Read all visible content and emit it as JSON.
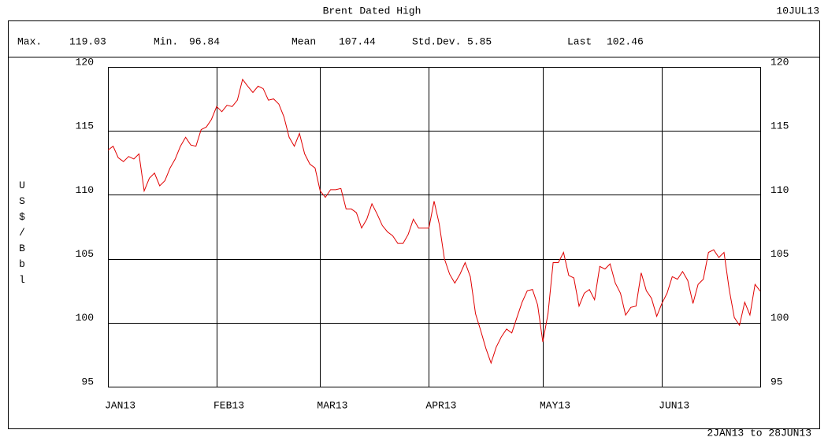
{
  "header": {
    "title": "Brent Dated High",
    "date": "10JUL13"
  },
  "stats": [
    {
      "label": "Max.",
      "value": 119.03
    },
    {
      "label": "Min.",
      "value": 96.84
    },
    {
      "label": "Mean",
      "value": 107.44
    },
    {
      "label": "Std.Dev.",
      "value": 5.85
    },
    {
      "label": "Last",
      "value": 102.46
    }
  ],
  "footer": "2JAN13 to 28JUN13",
  "chart_data": {
    "type": "line",
    "ylabel": "US$/Bbl",
    "color": "#e00000",
    "grid": true,
    "xlim": [
      0,
      126
    ],
    "xticks": [
      {
        "value": 0,
        "label": "JAN13"
      },
      {
        "value": 21,
        "label": "FEB13"
      },
      {
        "value": 41,
        "label": "MAR13"
      },
      {
        "value": 62,
        "label": "APR13"
      },
      {
        "value": 84,
        "label": "MAY13"
      },
      {
        "value": 107,
        "label": "JUN13"
      }
    ],
    "ylim": [
      95,
      120
    ],
    "yticks": [
      95,
      100,
      105,
      110,
      115,
      120
    ],
    "values": [
      113.5,
      113.8,
      112.9,
      112.6,
      113.0,
      112.8,
      113.2,
      110.3,
      111.3,
      111.7,
      110.7,
      111.1,
      112.1,
      112.8,
      113.8,
      114.5,
      113.9,
      113.8,
      115.1,
      115.3,
      115.9,
      116.9,
      116.5,
      117.0,
      116.9,
      117.4,
      119.03,
      118.5,
      118.0,
      118.5,
      118.3,
      117.4,
      117.5,
      117.1,
      116.1,
      114.5,
      113.8,
      114.8,
      113.2,
      112.4,
      112.1,
      110.3,
      109.8,
      110.4,
      110.4,
      110.5,
      108.9,
      108.9,
      108.6,
      107.4,
      108.1,
      109.3,
      108.5,
      107.6,
      107.1,
      106.8,
      106.2,
      106.2,
      106.9,
      108.1,
      107.4,
      107.4,
      107.4,
      109.5,
      107.7,
      105.0,
      103.8,
      103.1,
      103.8,
      104.7,
      103.6,
      100.7,
      99.4,
      98.0,
      96.84,
      98.1,
      98.9,
      99.5,
      99.2,
      100.4,
      101.6,
      102.5,
      102.6,
      101.4,
      98.5,
      100.7,
      104.7,
      104.7,
      105.5,
      103.7,
      103.5,
      101.3,
      102.3,
      102.6,
      101.8,
      104.4,
      104.2,
      104.6,
      103.1,
      102.3,
      100.6,
      101.2,
      101.3,
      103.9,
      102.5,
      101.9,
      100.5,
      101.5,
      102.3,
      103.6,
      103.4,
      104.0,
      103.3,
      101.5,
      103.0,
      103.4,
      105.5,
      105.7,
      105.1,
      105.5,
      102.6,
      100.4,
      99.8,
      101.6,
      100.6,
      103.0,
      102.46
    ]
  }
}
